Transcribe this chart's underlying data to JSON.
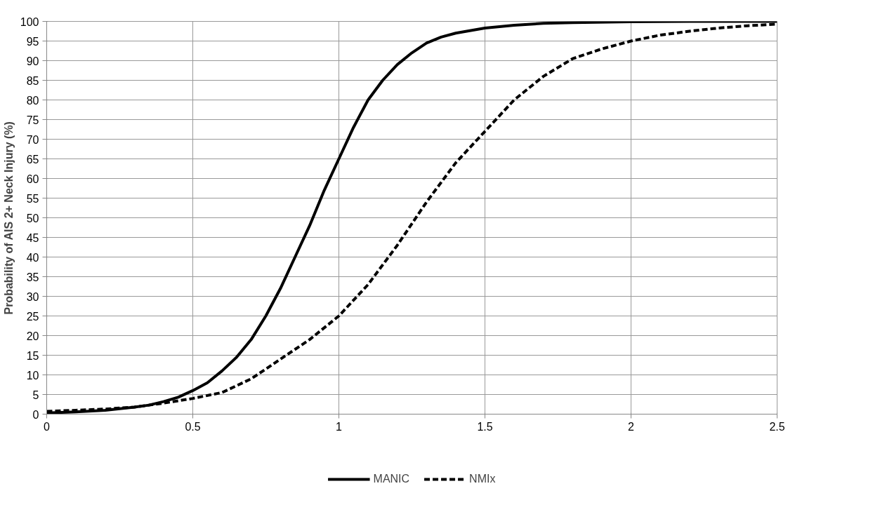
{
  "chart_data": {
    "type": "line",
    "ylabel": "Probability of AIS 2+ Neck Injury (%)",
    "xlim": [
      0,
      2.5
    ],
    "ylim": [
      0,
      100
    ],
    "xticks": [
      0,
      0.5,
      1,
      1.5,
      2,
      2.5
    ],
    "yticks": [
      0,
      5,
      10,
      15,
      20,
      25,
      30,
      35,
      40,
      45,
      50,
      55,
      60,
      65,
      70,
      75,
      80,
      85,
      90,
      95,
      100
    ],
    "grid": true,
    "legend": "bottom",
    "marker": "none",
    "series": [
      {
        "name": "MANIC",
        "color": "#000000",
        "line_style": "solid",
        "x": [
          0,
          0.1,
          0.2,
          0.3,
          0.35,
          0.4,
          0.45,
          0.5,
          0.55,
          0.6,
          0.65,
          0.7,
          0.75,
          0.8,
          0.85,
          0.9,
          0.95,
          1.0,
          1.05,
          1.1,
          1.15,
          1.2,
          1.25,
          1.3,
          1.35,
          1.4,
          1.5,
          1.6,
          1.7,
          1.8,
          2.0,
          2.2,
          2.5
        ],
        "values": [
          0.3,
          0.6,
          1.0,
          1.8,
          2.3,
          3.2,
          4.3,
          6,
          8,
          11,
          14.5,
          19,
          25,
          32,
          40,
          48,
          57,
          65,
          73,
          80,
          85,
          89,
          92,
          94.5,
          96,
          97,
          98.3,
          99,
          99.5,
          99.7,
          99.9,
          100,
          100
        ]
      },
      {
        "name": "NMIx",
        "color": "#000000",
        "line_style": "dashed",
        "x": [
          0,
          0.1,
          0.2,
          0.3,
          0.4,
          0.5,
          0.6,
          0.7,
          0.8,
          0.9,
          1.0,
          1.1,
          1.2,
          1.3,
          1.4,
          1.5,
          1.6,
          1.7,
          1.8,
          1.9,
          2.0,
          2.1,
          2.2,
          2.3,
          2.4,
          2.5
        ],
        "values": [
          0.7,
          1.0,
          1.3,
          1.8,
          2.8,
          4,
          5.5,
          9,
          14,
          19,
          25,
          33,
          43,
          54,
          64,
          72,
          80,
          86,
          90.5,
          93,
          95,
          96.5,
          97.5,
          98.3,
          98.9,
          99.3
        ]
      }
    ]
  }
}
